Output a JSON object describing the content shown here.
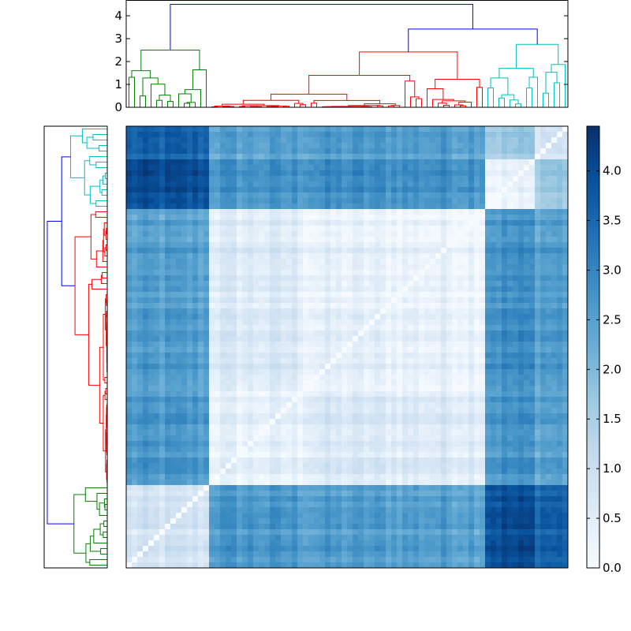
{
  "chart_data": {
    "type": "heatmap",
    "title": "",
    "colormap": "Blues",
    "colorbar": {
      "range": [
        0.0,
        4.45
      ],
      "tick_labels": [
        "0.0",
        "0.5",
        "1.0",
        "1.5",
        "2.0",
        "2.5",
        "3.0",
        "3.5",
        "4.0"
      ]
    },
    "top_dendrogram": {
      "y_range": [
        0,
        4.66
      ],
      "tick_labels": [
        "0",
        "1",
        "2",
        "3",
        "4"
      ],
      "cluster_colors": {
        "green": "#008000",
        "red": "#ff0000",
        "cyan": "#00bfbf",
        "link": "#0000ff"
      },
      "root_height": 4.5,
      "red_cyan_join_height": 3.42,
      "cluster_root_heights": {
        "green": 2.5,
        "red": 2.42,
        "cyan": 2.75
      }
    },
    "left_dendrogram": {
      "orientation": "left",
      "leaf_order_top_to_bottom": [
        "cyan",
        "red",
        "green"
      ]
    },
    "groups": [
      {
        "cluster": "green",
        "leaves": 15
      },
      {
        "cluster": "red",
        "leaves": 17
      },
      {
        "cluster": "red",
        "leaves": 33
      },
      {
        "cluster": "cyan",
        "leaves": 9
      },
      {
        "cluster": "cyan",
        "leaves": 6
      }
    ],
    "group_mean_distance": [
      [
        0.7,
        2.6,
        2.5,
        3.9,
        3.6
      ],
      [
        2.6,
        0.35,
        0.6,
        2.7,
        2.5
      ],
      [
        2.5,
        0.6,
        0.35,
        2.8,
        2.6
      ],
      [
        3.9,
        2.7,
        2.8,
        0.25,
        1.7
      ],
      [
        3.6,
        2.5,
        2.6,
        1.7,
        0.9
      ]
    ]
  }
}
